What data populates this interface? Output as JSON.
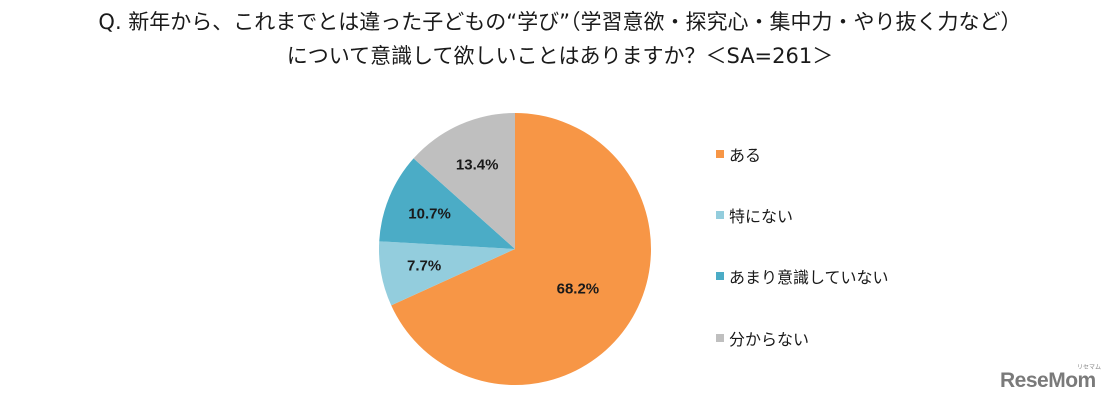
{
  "title": {
    "line1": "Q. 新年から、これまでとは違った子どもの“学び”（学習意欲・探究心・集中力・やり抜く力など）",
    "line2": "について意識して欲しいことはありますか？＜SA=261＞"
  },
  "chart_data": {
    "type": "pie",
    "title": "Q. 新年から、これまでとは違った子どもの“学び”（学習意欲・探究心・集中力・やり抜く力など）について意識して欲しいことはありますか？＜SA=261＞",
    "sample_size": "SA=261",
    "categories": [
      "ある",
      "特にない",
      "あまり意識していない",
      "分からない"
    ],
    "values": [
      68.2,
      7.7,
      10.7,
      13.4
    ],
    "value_labels": [
      "68.2%",
      "7.7%",
      "10.7%",
      "13.4%"
    ],
    "colors": [
      "#F79646",
      "#93CDDD",
      "#4BACC6",
      "#BFBFBF"
    ],
    "start_angle": "12 o'clock, clockwise",
    "legend_position": "right"
  },
  "legend": {
    "items": [
      {
        "label": "ある",
        "color": "#F79646"
      },
      {
        "label": "特にない",
        "color": "#93CDDD"
      },
      {
        "label": "あまり意識していない",
        "color": "#4BACC6"
      },
      {
        "label": "分からない",
        "color": "#BFBFBF"
      }
    ]
  },
  "watermark": {
    "brand": "ReseMom",
    "sub": "リセマム"
  }
}
